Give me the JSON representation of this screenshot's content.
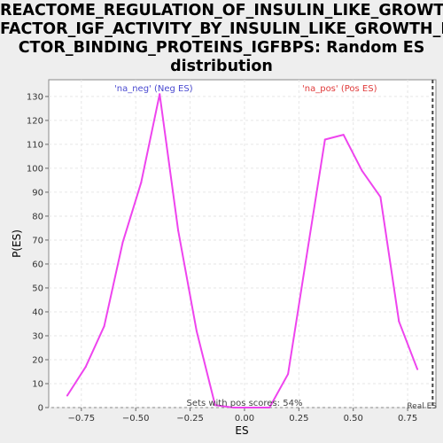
{
  "chart_data": {
    "type": "line",
    "title": "REACTOME_REGULATION_OF_INSULIN_LIKE_GROWTH_\nFACTOR_IGF_ACTIVITY_BY_INSULIN_LIKE_GROWTH_FA\nCTOR_BINDING_PROTEINS_IGFBPS: Random ES\ndistribution",
    "xlabel": "ES",
    "ylabel": "P(ES)",
    "xlim": [
      -0.9,
      0.88
    ],
    "ylim": [
      0,
      137
    ],
    "xticks": [
      -0.75,
      -0.5,
      -0.25,
      0.0,
      0.25,
      0.5,
      0.75
    ],
    "xtick_labels": [
      "−0.75",
      "−0.50",
      "−0.25",
      "0.00",
      "0.25",
      "0.50",
      "0.75"
    ],
    "yticks": [
      0,
      10,
      20,
      30,
      40,
      50,
      60,
      70,
      80,
      90,
      100,
      110,
      120,
      130
    ],
    "grid": true,
    "series": [
      {
        "color": "#ee44ee",
        "x": [
          -0.815,
          -0.73,
          -0.645,
          -0.56,
          -0.475,
          -0.39,
          -0.305,
          -0.22,
          -0.135,
          -0.05,
          0.03,
          0.115,
          0.2,
          0.285,
          0.37,
          0.455,
          0.54,
          0.625,
          0.71,
          0.795
        ],
        "y": [
          5,
          17,
          34,
          69,
          94,
          131,
          74,
          32,
          1,
          0,
          0,
          0,
          14,
          63,
          112,
          114,
          99,
          88,
          36,
          16
        ]
      }
    ],
    "annotations": {
      "neg_label": "'na_neg' (Neg ES)",
      "pos_label": "'na_pos' (Pos ES)",
      "pos_scores": "Sets with pos scores: 54%",
      "real_es": "Real ES"
    },
    "real_es_x": 0.865,
    "colors": {
      "neg": "#4a4ad0",
      "pos": "#e03a3a",
      "line": "#ee44ee"
    }
  }
}
